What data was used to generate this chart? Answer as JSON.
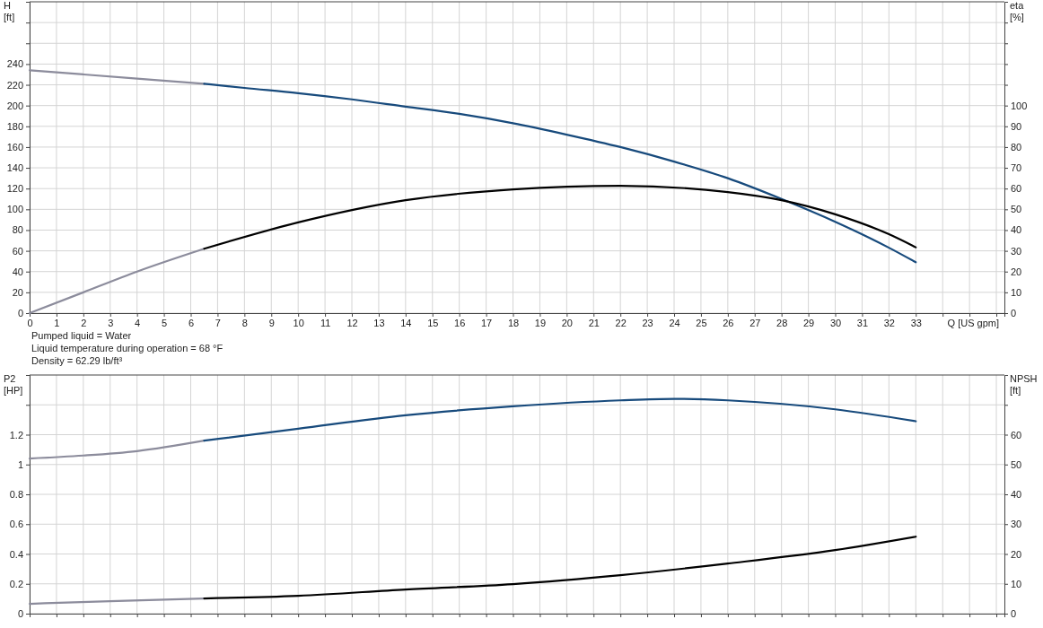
{
  "chart_data": [
    {
      "type": "line",
      "xlabel": "Q [US gpm]",
      "ylabel": "H [ft]",
      "y2label": "eta [%]",
      "xlim": [
        0,
        36.3
      ],
      "xticks": [
        0,
        1,
        2,
        3,
        4,
        5,
        6,
        7,
        8,
        9,
        10,
        11,
        12,
        13,
        14,
        15,
        16,
        17,
        18,
        19,
        20,
        21,
        22,
        23,
        24,
        25,
        26,
        27,
        28,
        29,
        30,
        31,
        32,
        33,
        {
          "value": 34,
          "label": null
        },
        {
          "value": 35,
          "label": null
        },
        {
          "value": 36,
          "label": null
        }
      ],
      "ylim": [
        0,
        300
      ],
      "yticks": [
        0,
        20,
        40,
        60,
        80,
        100,
        120,
        140,
        160,
        180,
        200,
        220,
        240,
        {
          "value": 260,
          "label": null
        },
        {
          "value": 280,
          "label": null
        }
      ],
      "y2lim": [
        0,
        150
      ],
      "y2ticks": [
        0,
        10,
        20,
        30,
        40,
        50,
        60,
        70,
        80,
        90,
        100,
        {
          "value": 110,
          "label": null
        },
        {
          "value": 120,
          "label": null
        },
        {
          "value": 130,
          "label": null
        },
        {
          "value": 140,
          "label": null
        }
      ],
      "grid": true,
      "series": [
        {
          "color": "#8c8c9c",
          "x": [
            0,
            2,
            4,
            6.5
          ],
          "values": [
            234,
            230,
            226,
            221
          ]
        },
        {
          "color": "#174a7c",
          "x": [
            6.5,
            8,
            10,
            12,
            14,
            16,
            18,
            20,
            22,
            24,
            26,
            28,
            30,
            32,
            33
          ],
          "values": [
            221,
            217,
            212,
            206,
            199,
            192,
            183,
            172,
            160,
            146,
            130,
            110,
            88,
            63,
            49
          ]
        },
        {
          "color": "#8c8c9c",
          "axis": "y2",
          "x": [
            0,
            2,
            4,
            6.5
          ],
          "values": [
            0,
            10,
            20,
            31
          ]
        },
        {
          "color": "#000000",
          "axis": "y2",
          "x": [
            6.5,
            10,
            14,
            18,
            22,
            26,
            28,
            30,
            32,
            33
          ],
          "values": [
            31,
            43.7,
            54.4,
            59.6,
            61.3,
            58.3,
            54.4,
            47.6,
            38,
            31.7
          ]
        }
      ],
      "annotations": [
        "Pumped liquid = Water",
        "Liquid temperature during operation = 68 °F",
        "Density = 62.29 lb/ft³"
      ]
    },
    {
      "type": "line",
      "ylabel": "P2 [HP]",
      "y2label": "NPSH [ft]",
      "tick_labels": "y",
      "xlim": [
        0,
        36.3
      ],
      "xticks": [
        {
          "value": 0,
          "label": null
        },
        {
          "value": 1,
          "label": null
        },
        {
          "value": 2,
          "label": null
        },
        {
          "value": 3,
          "label": null
        },
        {
          "value": 4,
          "label": null
        },
        {
          "value": 5,
          "label": null
        },
        {
          "value": 6,
          "label": null
        },
        {
          "value": 7,
          "label": null
        },
        {
          "value": 8,
          "label": null
        },
        {
          "value": 9,
          "label": null
        },
        {
          "value": 10,
          "label": null
        },
        {
          "value": 11,
          "label": null
        },
        {
          "value": 12,
          "label": null
        },
        {
          "value": 13,
          "label": null
        },
        {
          "value": 14,
          "label": null
        },
        {
          "value": 15,
          "label": null
        },
        {
          "value": 16,
          "label": null
        },
        {
          "value": 17,
          "label": null
        },
        {
          "value": 18,
          "label": null
        },
        {
          "value": 19,
          "label": null
        },
        {
          "value": 20,
          "label": null
        },
        {
          "value": 21,
          "label": null
        },
        {
          "value": 22,
          "label": null
        },
        {
          "value": 23,
          "label": null
        },
        {
          "value": 24,
          "label": null
        },
        {
          "value": 25,
          "label": null
        },
        {
          "value": 26,
          "label": null
        },
        {
          "value": 27,
          "label": null
        },
        {
          "value": 28,
          "label": null
        },
        {
          "value": 29,
          "label": null
        },
        {
          "value": 30,
          "label": null
        },
        {
          "value": 31,
          "label": null
        },
        {
          "value": 32,
          "label": null
        },
        {
          "value": 33,
          "label": null
        },
        {
          "value": 34,
          "label": null
        },
        {
          "value": 35,
          "label": null
        },
        {
          "value": 36,
          "label": null
        }
      ],
      "ylim": [
        0,
        1.6
      ],
      "yticks": [
        0,
        0.2,
        0.4,
        0.6,
        0.8,
        1.0,
        1.2,
        {
          "value": 1.4,
          "label": null
        }
      ],
      "y2lim": [
        0,
        80
      ],
      "y2ticks": [
        0,
        10,
        20,
        30,
        40,
        50,
        60,
        {
          "value": 70,
          "label": null
        }
      ],
      "grid": true,
      "series": [
        {
          "color": "#8c8c9c",
          "x": [
            0,
            2,
            4,
            6.5
          ],
          "values": [
            1.04,
            1.06,
            1.09,
            1.16
          ]
        },
        {
          "color": "#174a7c",
          "x": [
            6.5,
            10,
            14,
            18,
            22,
            24,
            26,
            30,
            33
          ],
          "values": [
            1.16,
            1.24,
            1.33,
            1.39,
            1.43,
            1.44,
            1.43,
            1.37,
            1.29
          ]
        },
        {
          "color": "#8c8c9c",
          "axis": "y2",
          "x": [
            0,
            3,
            6.5
          ],
          "values": [
            3.3,
            4.2,
            5.1
          ]
        },
        {
          "color": "#000000",
          "axis": "y2",
          "x": [
            6.5,
            10,
            14,
            18,
            22,
            26,
            30,
            33
          ],
          "values": [
            5.1,
            6,
            8.1,
            9.9,
            12.9,
            16.8,
            21.3,
            25.8
          ]
        }
      ]
    }
  ]
}
